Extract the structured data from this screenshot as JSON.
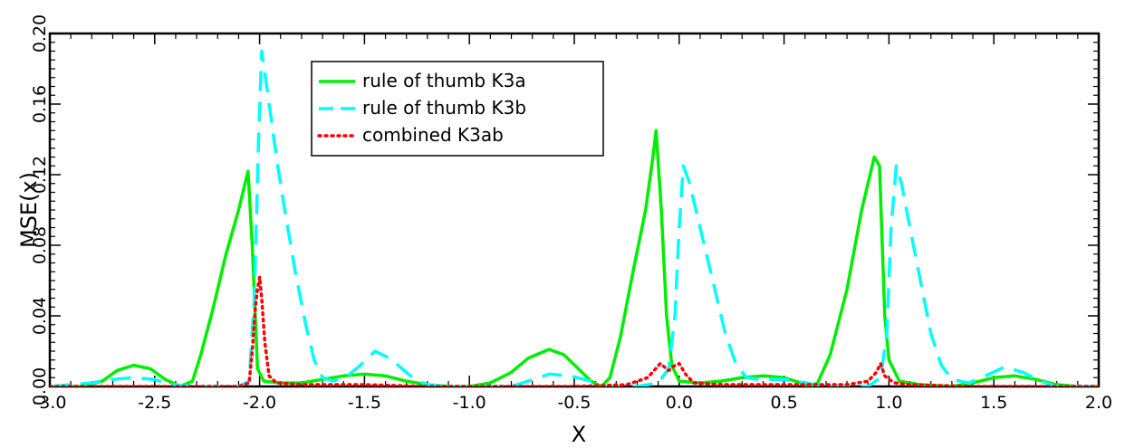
{
  "chart_data": {
    "type": "line",
    "xlabel": "X",
    "ylabel": "MSE(x)",
    "xlim": [
      -3.0,
      2.0
    ],
    "ylim": [
      0.0,
      0.2
    ],
    "x_ticks": [
      "-3.0",
      "-2.5",
      "-2.0",
      "-1.5",
      "-1.0",
      "-0.5",
      "0.0",
      "0.5",
      "1.0",
      "1.5",
      "2.0"
    ],
    "y_ticks": [
      "0.00",
      "0.04",
      "0.08",
      "0.12",
      "0.16",
      "0.20"
    ],
    "legend_position": "top-center",
    "series": [
      {
        "name": "rule of thumb K3a",
        "color": "#00ee00",
        "style": "solid",
        "points": [
          [
            -3.0,
            0.0
          ],
          [
            -2.85,
            0.0
          ],
          [
            -2.75,
            0.003
          ],
          [
            -2.68,
            0.009
          ],
          [
            -2.6,
            0.012
          ],
          [
            -2.52,
            0.01
          ],
          [
            -2.45,
            0.004
          ],
          [
            -2.38,
            0.0
          ],
          [
            -2.32,
            0.003
          ],
          [
            -2.28,
            0.018
          ],
          [
            -2.22,
            0.045
          ],
          [
            -2.16,
            0.075
          ],
          [
            -2.1,
            0.1
          ],
          [
            -2.055,
            0.122
          ],
          [
            -2.035,
            0.08
          ],
          [
            -2.01,
            0.01
          ],
          [
            -1.98,
            0.003
          ],
          [
            -1.9,
            0.002
          ],
          [
            -1.8,
            0.002
          ],
          [
            -1.7,
            0.004
          ],
          [
            -1.6,
            0.006
          ],
          [
            -1.5,
            0.007
          ],
          [
            -1.4,
            0.006
          ],
          [
            -1.3,
            0.003
          ],
          [
            -1.2,
            0.001
          ],
          [
            -1.1,
            0.0
          ],
          [
            -1.0,
            0.0
          ],
          [
            -0.9,
            0.002
          ],
          [
            -0.8,
            0.008
          ],
          [
            -0.72,
            0.016
          ],
          [
            -0.62,
            0.021
          ],
          [
            -0.55,
            0.018
          ],
          [
            -0.48,
            0.01
          ],
          [
            -0.42,
            0.003
          ],
          [
            -0.37,
            0.0
          ],
          [
            -0.33,
            0.005
          ],
          [
            -0.28,
            0.028
          ],
          [
            -0.22,
            0.065
          ],
          [
            -0.16,
            0.1
          ],
          [
            -0.125,
            0.13
          ],
          [
            -0.11,
            0.145
          ],
          [
            -0.085,
            0.1
          ],
          [
            -0.06,
            0.04
          ],
          [
            -0.035,
            0.012
          ],
          [
            0.0,
            0.003
          ],
          [
            0.1,
            0.002
          ],
          [
            0.2,
            0.003
          ],
          [
            0.3,
            0.005
          ],
          [
            0.4,
            0.006
          ],
          [
            0.5,
            0.005
          ],
          [
            0.58,
            0.002
          ],
          [
            0.62,
            0.0
          ],
          [
            0.66,
            0.002
          ],
          [
            0.72,
            0.018
          ],
          [
            0.8,
            0.055
          ],
          [
            0.87,
            0.1
          ],
          [
            0.93,
            0.13
          ],
          [
            0.955,
            0.125
          ],
          [
            0.98,
            0.04
          ],
          [
            1.0,
            0.015
          ],
          [
            1.05,
            0.003
          ],
          [
            1.15,
            0.001
          ],
          [
            1.3,
            0.0
          ],
          [
            1.4,
            0.002
          ],
          [
            1.5,
            0.005
          ],
          [
            1.6,
            0.006
          ],
          [
            1.7,
            0.004
          ],
          [
            1.8,
            0.001
          ],
          [
            1.9,
            0.0
          ],
          [
            2.0,
            0.0
          ]
        ]
      },
      {
        "name": "rule of thumb K3b",
        "color": "#00ffff",
        "style": "dashed",
        "points": [
          [
            -3.0,
            0.0
          ],
          [
            -2.8,
            0.002
          ],
          [
            -2.7,
            0.004
          ],
          [
            -2.6,
            0.005
          ],
          [
            -2.5,
            0.004
          ],
          [
            -2.42,
            0.001
          ],
          [
            -2.3,
            0.0
          ],
          [
            -2.1,
            0.0
          ],
          [
            -2.05,
            0.003
          ],
          [
            -2.025,
            0.05
          ],
          [
            -2.005,
            0.14
          ],
          [
            -1.99,
            0.19
          ],
          [
            -1.96,
            0.165
          ],
          [
            -1.92,
            0.13
          ],
          [
            -1.88,
            0.1
          ],
          [
            -1.83,
            0.065
          ],
          [
            -1.78,
            0.035
          ],
          [
            -1.74,
            0.015
          ],
          [
            -1.7,
            0.005
          ],
          [
            -1.65,
            0.003
          ],
          [
            -1.58,
            0.006
          ],
          [
            -1.52,
            0.012
          ],
          [
            -1.45,
            0.02
          ],
          [
            -1.38,
            0.016
          ],
          [
            -1.32,
            0.01
          ],
          [
            -1.26,
            0.004
          ],
          [
            -1.2,
            0.001
          ],
          [
            -1.1,
            0.0
          ],
          [
            -0.8,
            0.0
          ],
          [
            -0.72,
            0.003
          ],
          [
            -0.62,
            0.007
          ],
          [
            -0.52,
            0.006
          ],
          [
            -0.42,
            0.003
          ],
          [
            -0.35,
            0.0
          ],
          [
            -0.2,
            0.0
          ],
          [
            -0.1,
            0.002
          ],
          [
            -0.05,
            0.01
          ],
          [
            -0.02,
            0.04
          ],
          [
            0.0,
            0.09
          ],
          [
            0.02,
            0.125
          ],
          [
            0.05,
            0.115
          ],
          [
            0.1,
            0.09
          ],
          [
            0.16,
            0.06
          ],
          [
            0.22,
            0.03
          ],
          [
            0.27,
            0.013
          ],
          [
            0.32,
            0.005
          ],
          [
            0.38,
            0.004
          ],
          [
            0.5,
            0.004
          ],
          [
            0.6,
            0.002
          ],
          [
            0.7,
            0.0
          ],
          [
            0.9,
            0.0
          ],
          [
            0.96,
            0.005
          ],
          [
            0.99,
            0.03
          ],
          [
            1.01,
            0.09
          ],
          [
            1.035,
            0.125
          ],
          [
            1.06,
            0.115
          ],
          [
            1.1,
            0.09
          ],
          [
            1.15,
            0.06
          ],
          [
            1.2,
            0.03
          ],
          [
            1.25,
            0.012
          ],
          [
            1.3,
            0.004
          ],
          [
            1.38,
            0.002
          ],
          [
            1.46,
            0.006
          ],
          [
            1.55,
            0.011
          ],
          [
            1.64,
            0.008
          ],
          [
            1.72,
            0.003
          ],
          [
            1.8,
            0.0
          ],
          [
            2.0,
            0.0
          ]
        ]
      },
      {
        "name": "combined K3ab",
        "color": "#ff0000",
        "style": "dotted",
        "points": [
          [
            -3.0,
            0.0
          ],
          [
            -2.7,
            0.0
          ],
          [
            -2.4,
            0.0
          ],
          [
            -2.1,
            0.0
          ],
          [
            -2.05,
            0.002
          ],
          [
            -2.035,
            0.02
          ],
          [
            -2.02,
            0.045
          ],
          [
            -2.01,
            0.055
          ],
          [
            -2.0,
            0.062
          ],
          [
            -1.99,
            0.05
          ],
          [
            -1.975,
            0.025
          ],
          [
            -1.955,
            0.006
          ],
          [
            -1.92,
            0.002
          ],
          [
            -1.8,
            0.001
          ],
          [
            -1.5,
            0.001
          ],
          [
            -1.2,
            0.0
          ],
          [
            -0.9,
            0.0
          ],
          [
            -0.5,
            0.0
          ],
          [
            -0.25,
            0.001
          ],
          [
            -0.15,
            0.005
          ],
          [
            -0.09,
            0.013
          ],
          [
            -0.05,
            0.009
          ],
          [
            -0.02,
            0.012
          ],
          [
            0.0,
            0.013
          ],
          [
            0.03,
            0.007
          ],
          [
            0.07,
            0.002
          ],
          [
            0.2,
            0.001
          ],
          [
            0.5,
            0.001
          ],
          [
            0.8,
            0.001
          ],
          [
            0.9,
            0.003
          ],
          [
            0.94,
            0.008
          ],
          [
            0.96,
            0.013
          ],
          [
            0.98,
            0.006
          ],
          [
            1.0,
            0.004
          ],
          [
            1.03,
            0.002
          ],
          [
            1.1,
            0.001
          ],
          [
            1.4,
            0.0
          ],
          [
            1.7,
            0.0
          ],
          [
            2.0,
            0.0
          ]
        ]
      }
    ]
  }
}
